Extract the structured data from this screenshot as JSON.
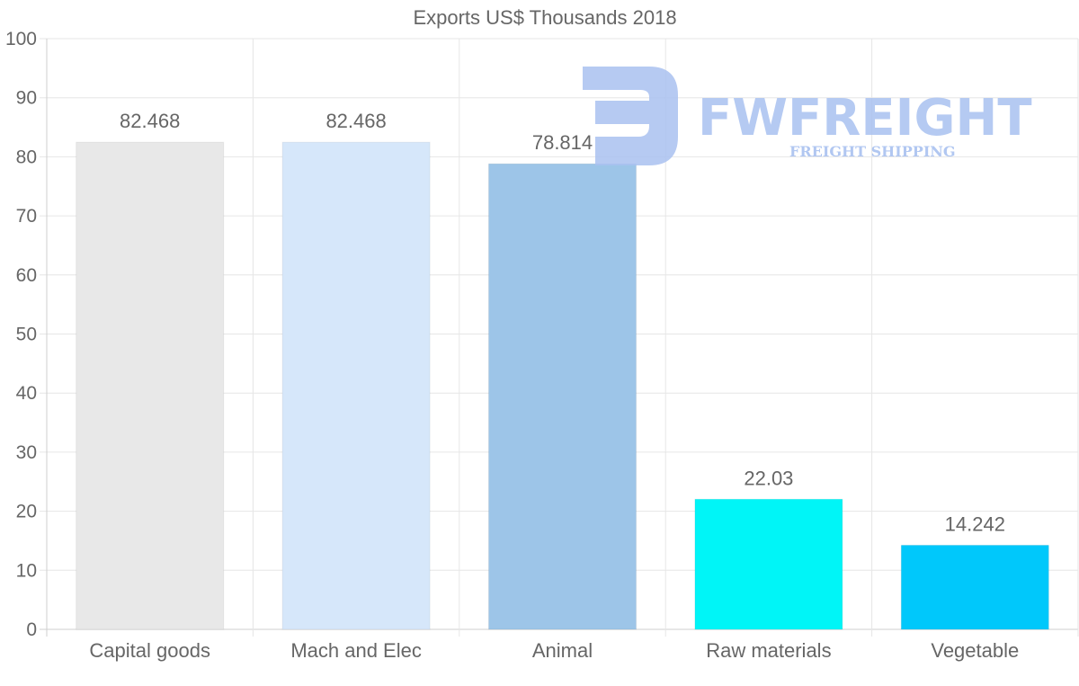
{
  "chart_data": {
    "type": "bar",
    "title": "Exports US$ Thousands 2018",
    "categories": [
      "Capital goods",
      "Mach and Elec",
      "Animal",
      "Raw materials",
      "Vegetable"
    ],
    "values": [
      82.468,
      82.468,
      78.814,
      22.03,
      14.242
    ],
    "value_labels": [
      "82.468",
      "82.468",
      "78.814",
      "22.03",
      "14.242"
    ],
    "colors": [
      "#e8e8e8",
      "#d6e7fa",
      "#9dc5e8",
      "#00f5f7",
      "#00c8fb"
    ],
    "ylim": [
      0,
      100
    ],
    "yticks": [
      "0",
      "10",
      "20",
      "30",
      "40",
      "50",
      "60",
      "70",
      "80",
      "90",
      "100"
    ],
    "grid": true,
    "xlabel": "",
    "ylabel": ""
  },
  "watermark": {
    "brand": "FWFREIGHT",
    "tagline": "FREIGHT SHIPPING",
    "color": "#a9c1f0"
  }
}
